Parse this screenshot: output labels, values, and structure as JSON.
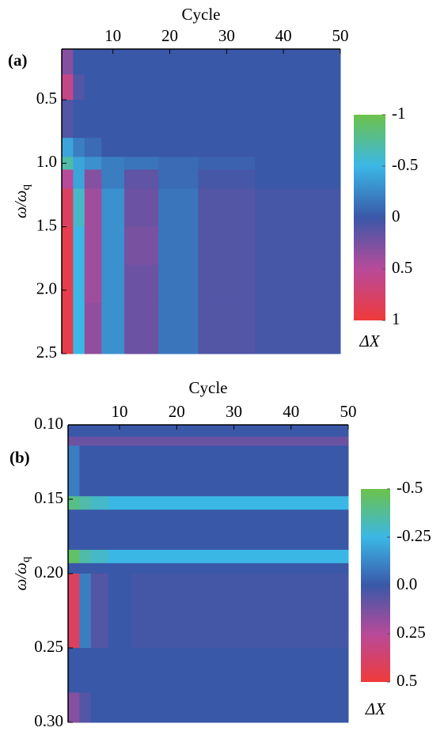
{
  "chart_data": [
    {
      "type": "heatmap",
      "panel_label": "(a)",
      "xlabel": "Cycle",
      "ylabel": "ω/ω",
      "ylabel_sub": "q",
      "colorbar_label": "ΔX",
      "xlim": [
        1,
        50
      ],
      "xticks": [
        10,
        20,
        30,
        40,
        50
      ],
      "ylim": [
        0.1,
        2.5
      ],
      "yticks": [
        0.5,
        {
          "value": 1.0,
          "label": "1.0"
        },
        1.5,
        {
          "value": 2.0,
          "label": "2.0"
        },
        2.5
      ],
      "y_reversed": true,
      "zlim": [
        -1,
        1
      ],
      "colorbar_ticks": [
        -1,
        -0.5,
        0,
        0.5,
        1
      ],
      "colors": [
        "#6cc24a",
        "#3bb7e6",
        "#3a58a8",
        "#b84a9a",
        "#f03a3a"
      ],
      "xbins": [
        1,
        3,
        5,
        8,
        12,
        18,
        25,
        35,
        50
      ],
      "ybins": [
        0.1,
        0.3,
        0.5,
        0.8,
        0.95,
        1.05,
        1.2,
        1.5,
        1.8,
        2.1,
        2.5
      ],
      "z": [
        [
          0.3,
          0,
          0,
          0,
          0,
          0,
          0,
          0
        ],
        [
          0.6,
          0.1,
          0,
          0,
          0,
          0,
          0,
          0
        ],
        [
          0.1,
          0,
          0,
          0,
          0,
          0,
          0,
          0
        ],
        [
          -0.4,
          -0.2,
          -0.1,
          0,
          0,
          0,
          0,
          0
        ],
        [
          -0.7,
          -0.4,
          -0.3,
          -0.2,
          -0.15,
          -0.1,
          -0.05,
          0
        ],
        [
          0.5,
          -0.4,
          0.3,
          -0.2,
          0.15,
          -0.1,
          0.05,
          0
        ],
        [
          0.8,
          -0.6,
          0.4,
          -0.3,
          0.2,
          -0.15,
          0.1,
          0.05
        ],
        [
          0.9,
          -0.5,
          0.4,
          -0.3,
          0.25,
          -0.15,
          0.1,
          0.05
        ],
        [
          0.9,
          -0.5,
          0.4,
          -0.3,
          0.2,
          -0.15,
          0.1,
          0.05
        ],
        [
          0.9,
          -0.5,
          0.35,
          -0.3,
          0.2,
          -0.15,
          0.1,
          0.05
        ]
      ]
    },
    {
      "type": "heatmap",
      "panel_label": "(b)",
      "xlabel": "Cycle",
      "ylabel": "ω/ω",
      "ylabel_sub": "q",
      "colorbar_label": "ΔX",
      "xlim": [
        1,
        50
      ],
      "xticks": [
        10,
        20,
        30,
        40,
        50
      ],
      "ylim": [
        0.1,
        0.3
      ],
      "yticks": [
        {
          "value": 0.1,
          "label": "0.10"
        },
        {
          "value": 0.15,
          "label": "0.15"
        },
        {
          "value": 0.2,
          "label": "0.20"
        },
        {
          "value": 0.25,
          "label": "0.25"
        },
        {
          "value": 0.3,
          "label": "0.30"
        }
      ],
      "y_reversed": true,
      "zlim": [
        -0.5,
        0.5
      ],
      "colorbar_ticks": [
        -0.5,
        -0.25,
        {
          "value": 0,
          "label": "0.0"
        },
        0.25,
        0.5
      ],
      "colors": [
        "#6cc24a",
        "#3bb7e6",
        "#3a58a8",
        "#b84a9a",
        "#f03a3a"
      ],
      "xbins": [
        1,
        3,
        5,
        8,
        12,
        20,
        35,
        50
      ],
      "ybins": [
        0.1,
        0.108,
        0.114,
        0.148,
        0.157,
        0.184,
        0.193,
        0.2,
        0.25,
        0.28,
        0.3
      ],
      "z": [
        [
          0,
          0,
          0,
          0,
          0,
          0,
          0
        ],
        [
          0.1,
          0.1,
          0.1,
          0.1,
          0.1,
          0.1,
          0.1
        ],
        [
          -0.1,
          0,
          0,
          0,
          0,
          0,
          0
        ],
        [
          -0.4,
          -0.35,
          -0.3,
          -0.25,
          -0.25,
          -0.25,
          -0.25
        ],
        [
          0,
          0,
          0,
          0,
          0,
          0,
          0
        ],
        [
          -0.45,
          -0.35,
          -0.3,
          -0.25,
          -0.25,
          -0.25,
          -0.25
        ],
        [
          0,
          0,
          0,
          0,
          0,
          0,
          0
        ],
        [
          0.4,
          -0.1,
          0.05,
          0,
          0.02,
          0.02,
          0.02
        ],
        [
          0,
          0,
          0,
          0,
          0,
          0,
          0
        ],
        [
          0.15,
          0.05,
          0,
          0,
          0,
          0,
          0
        ]
      ]
    }
  ]
}
